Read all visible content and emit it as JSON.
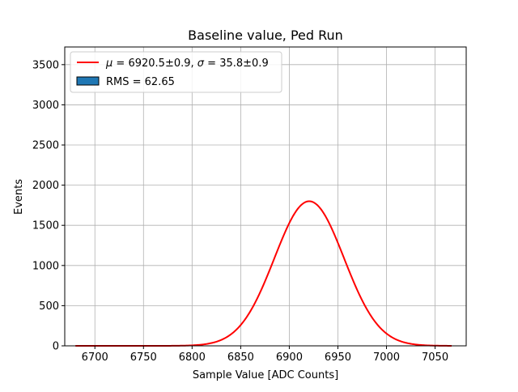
{
  "chart_data": {
    "type": "bar",
    "title": "Baseline value, Ped Run",
    "xlabel": "Sample Value [ADC Counts]",
    "ylabel": "Events",
    "xlim": [
      6669,
      7082
    ],
    "ylim": [
      0,
      3720
    ],
    "xticks": [
      6700,
      6750,
      6800,
      6850,
      6900,
      6950,
      7000,
      7050
    ],
    "yticks": [
      0,
      500,
      1000,
      1500,
      2000,
      2500,
      3000,
      3500
    ],
    "grid": true,
    "legend_position": "top-left",
    "colors": {
      "histogram": "#1f77b4",
      "edge": "#000000",
      "fit": "#ff0000",
      "grid": "#b0b0b0"
    },
    "series": [
      {
        "name": "RMS = 62.65",
        "kind": "histogram",
        "bin_start": 6680,
        "bin_width": 1,
        "values": [
          0,
          0,
          0,
          0,
          0,
          0,
          0,
          0,
          0,
          0,
          0,
          0,
          0,
          0,
          0,
          0,
          0,
          0,
          0,
          0,
          0,
          0,
          0,
          0,
          0,
          0,
          0,
          0,
          0,
          0,
          0,
          0,
          0,
          0,
          0,
          0,
          0,
          0,
          0,
          0,
          0,
          0,
          0,
          0,
          0,
          0,
          0,
          0,
          0,
          0,
          0,
          0,
          0,
          0,
          0,
          0,
          0,
          0,
          0,
          0,
          0,
          0,
          0,
          0,
          0,
          0,
          0,
          0,
          0,
          0,
          0,
          0,
          0,
          0,
          0,
          0,
          0,
          0,
          0,
          0,
          0,
          0,
          0,
          0,
          0,
          0,
          0,
          0,
          0,
          0,
          0,
          0,
          0,
          0,
          0,
          0,
          0,
          0,
          0,
          0,
          0,
          0,
          0,
          0,
          0,
          0,
          0,
          0,
          0,
          0,
          0,
          0,
          0,
          0,
          0,
          0,
          0,
          0,
          0,
          0,
          0,
          0,
          0,
          0,
          0,
          0,
          0,
          0,
          0,
          0,
          0,
          0,
          0,
          0,
          0,
          0,
          0,
          0,
          0,
          0,
          0,
          0,
          0,
          0,
          0,
          0,
          0,
          0,
          0,
          0,
          0,
          0,
          0,
          0,
          0,
          0,
          0,
          0,
          0,
          0,
          0,
          0,
          0,
          0,
          0,
          0,
          0,
          0,
          0,
          0,
          0,
          0,
          0,
          0,
          0,
          0,
          0,
          0,
          0,
          0,
          0,
          0,
          0,
          0,
          0,
          0,
          0,
          0,
          0,
          0,
          0,
          0,
          0,
          0,
          0,
          0,
          0,
          0,
          0,
          0,
          0,
          0,
          0,
          0,
          0,
          0,
          0,
          0,
          0,
          0,
          0,
          0,
          0,
          0,
          0,
          0,
          0,
          0,
          0,
          0,
          0,
          0,
          0,
          0,
          0,
          0,
          0,
          0,
          0,
          0,
          0,
          0,
          0,
          0,
          0,
          0,
          0,
          0,
          0,
          0,
          0,
          0,
          0,
          0,
          0,
          0,
          0,
          0,
          0,
          0,
          0,
          0,
          0,
          0,
          0,
          0,
          0,
          0,
          0,
          0,
          0,
          0,
          0,
          0,
          0,
          0,
          0,
          0,
          0,
          0,
          0,
          0,
          0,
          0,
          0,
          0,
          0,
          0,
          0,
          0,
          0,
          0,
          0,
          0,
          0,
          0,
          0,
          0,
          0,
          0,
          0,
          0,
          0,
          0,
          0,
          0,
          0,
          0,
          0,
          0,
          0,
          0,
          0,
          0,
          0,
          0,
          0,
          0,
          0,
          0,
          0,
          0,
          0,
          0,
          0,
          0,
          0,
          0,
          0,
          0,
          0,
          0,
          0,
          0,
          0,
          0,
          0,
          0,
          0,
          0,
          0,
          0,
          0,
          0,
          0,
          0,
          0,
          0,
          0,
          0,
          0,
          0,
          0,
          0,
          0,
          0,
          0,
          0,
          0,
          0,
          0,
          0,
          0,
          0,
          0,
          0,
          0,
          0,
          0,
          0,
          0,
          0,
          0,
          0,
          0,
          0,
          0,
          0,
          0,
          0,
          0,
          0,
          0,
          0,
          0,
          0,
          0,
          0,
          0,
          0,
          0,
          0,
          0,
          0,
          0,
          0
        ]
      },
      {
        "name": "$\\mu = 6920.5\\pm0.9$, $\\sigma = 35.8\\pm0.9$",
        "kind": "fit",
        "function": "gaussian",
        "mu": 6920.5,
        "sigma": 35.8,
        "amplitude": 1800,
        "x_range": [
          6680,
          7067
        ]
      }
    ],
    "legend": [
      {
        "mu": "6920.5±0.9",
        "sigma": "35.8±0.9"
      },
      "RMS = 62.65"
    ]
  }
}
